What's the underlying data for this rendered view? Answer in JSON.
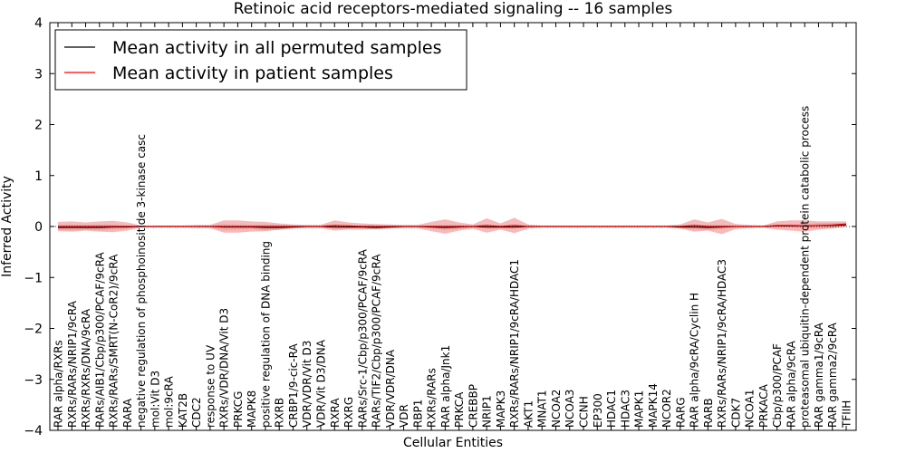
{
  "chart_data": {
    "type": "line",
    "title": "Retinoic acid receptors-mediated signaling -- 16 samples",
    "xlabel": "Cellular Entities",
    "ylabel": "Inferred Activity",
    "ylim": [
      -4,
      4
    ],
    "yticks": [
      -4,
      -3,
      -2,
      -1,
      0,
      1,
      2,
      3,
      4
    ],
    "grid": false,
    "legend_position": "top-left",
    "colors": {
      "permuted": "#000000",
      "patient": "#ff0000",
      "patient_band": "#f08080",
      "permuted_band": "#b0b0b0"
    },
    "categories": [
      "RAR alpha/RXRs",
      "RXRs/RARs/NRIP1/9cRA",
      "RXRs/RXRs/DNA/9cRA",
      "RARs/AIB1/Cbp/p300/PCAF/9cRA",
      "RXRs/RARs/SMRT(N-CoR2)/9cRA",
      "RARA",
      "negative regulation of phosphoinositide 3-kinase casc",
      "mol:Vit D3",
      "mol:9cRA",
      "KAT2B",
      "CDC2",
      "response to UV",
      "RXRs/VDR/DNA/Vit D3",
      "PRKCG",
      "MAPK8",
      "positive regulation of DNA binding",
      "RXRB",
      "CRBP1/9-cic-RA",
      "VDR/VDR/Vit D3",
      "VDR/Vit D3/DNA",
      "RXRA",
      "RXRG",
      "RARs/Src-1/Cbp/p300/PCAF/9cRA",
      "RARs/TIF2/Cbp/p300/PCAF/9cRA",
      "VDR/VDR/DNA",
      "VDR",
      "RBP1",
      "RXRs/RARs",
      "RAR alpha/Jnk1",
      "PRKCA",
      "CREBBP",
      "NRIP1",
      "MAPK3",
      "RXRs/RARs/NRIP1/9cRA/HDAC1",
      "AKT1",
      "MNAT1",
      "NCOA2",
      "NCOA3",
      "CCNH",
      "EP300",
      "HDAC1",
      "HDAC3",
      "MAPK1",
      "MAPK14",
      "NCOR2",
      "RARG",
      "RAR alpha/9cRA/Cyclin H",
      "RARB",
      "RXRs/RARs/NRIP1/9cRA/HDAC3",
      "CDK7",
      "NCOA1",
      "PRKACA",
      "Cbp/p300/PCAF",
      "RAR alpha/9cRA",
      "proteasomal ubiquitin-dependent protein catabolic process",
      "RAR gamma1/9cRA",
      "RAR gamma2/9cRA",
      "TFIIH"
    ],
    "series": [
      {
        "name": "Mean activity in all permuted samples",
        "color": "#000000",
        "values": [
          -0.02,
          -0.02,
          -0.02,
          -0.02,
          -0.01,
          -0.01,
          0,
          0,
          0,
          0,
          0,
          0,
          -0.01,
          -0.01,
          -0.01,
          -0.02,
          -0.02,
          -0.01,
          0,
          0,
          -0.01,
          -0.01,
          -0.01,
          -0.02,
          -0.01,
          0,
          0,
          -0.01,
          -0.02,
          -0.01,
          0,
          -0.01,
          -0.01,
          -0.01,
          0,
          0,
          0,
          0,
          0,
          0,
          0,
          0,
          0,
          0,
          0,
          -0.01,
          -0.01,
          -0.02,
          -0.01,
          0,
          0,
          0,
          0.01,
          0.01,
          0.01,
          0.02,
          0.02,
          0.03
        ],
        "band": [
          0.05,
          0.06,
          0.05,
          0.06,
          0.05,
          0.03,
          0.01,
          0.01,
          0.01,
          0.01,
          0.01,
          0.02,
          0.06,
          0.05,
          0.04,
          0.06,
          0.05,
          0.03,
          0.02,
          0.02,
          0.04,
          0.03,
          0.03,
          0.04,
          0.03,
          0.02,
          0.02,
          0.03,
          0.05,
          0.04,
          0.02,
          0.04,
          0.03,
          0.04,
          0.02,
          0.01,
          0.01,
          0.01,
          0.01,
          0.01,
          0.01,
          0.01,
          0.01,
          0.01,
          0.01,
          0.03,
          0.05,
          0.05,
          0.04,
          0.02,
          0.01,
          0.01,
          0.02,
          0.03,
          0.04,
          0.05,
          0.05,
          0.04
        ]
      },
      {
        "name": "Mean activity in patient samples",
        "color": "#ff0000",
        "values": [
          0,
          0,
          0,
          0,
          0,
          0,
          0,
          0,
          0,
          0,
          0,
          0,
          0,
          0,
          0,
          0,
          0,
          0,
          0,
          0,
          0.02,
          0.01,
          0,
          0,
          0,
          0,
          0,
          0,
          0,
          0,
          0,
          0.02,
          0,
          0.02,
          0,
          0,
          0,
          0,
          0,
          0,
          0,
          0,
          0,
          0,
          0,
          0,
          0.02,
          0,
          0,
          0,
          0,
          0,
          0.02,
          0.02,
          0.01,
          0.02,
          0.03,
          0.05
        ],
        "band": [
          0.09,
          0.1,
          0.08,
          0.1,
          0.11,
          0.08,
          0.02,
          0.02,
          0.02,
          0.02,
          0.03,
          0.03,
          0.12,
          0.12,
          0.1,
          0.09,
          0.06,
          0.04,
          0.03,
          0.03,
          0.1,
          0.07,
          0.06,
          0.05,
          0.04,
          0.03,
          0.03,
          0.09,
          0.14,
          0.08,
          0.04,
          0.14,
          0.06,
          0.15,
          0.04,
          0.02,
          0.02,
          0.02,
          0.02,
          0.02,
          0.02,
          0.02,
          0.02,
          0.02,
          0.02,
          0.04,
          0.12,
          0.08,
          0.15,
          0.05,
          0.03,
          0.02,
          0.08,
          0.1,
          0.11,
          0.08,
          0.07,
          0.05
        ]
      }
    ]
  }
}
